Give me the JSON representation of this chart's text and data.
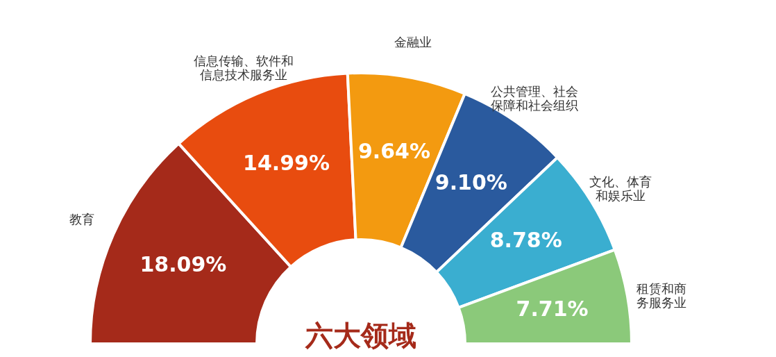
{
  "chart_data": {
    "type": "donut",
    "categories": [
      "教育",
      "信息传输、软件和信息技术服务业",
      "金融业",
      "公共管理、社会保障和社会组织",
      "文化、体育和娱乐业",
      "租赁和商务服务业"
    ],
    "values": [
      18.09,
      14.99,
      9.64,
      9.1,
      8.78,
      7.71
    ],
    "value_labels": [
      "18.09%",
      "14.99%",
      "9.64%",
      "9.10%",
      "8.78%",
      "7.71%"
    ],
    "colors": [
      "#a52a1a",
      "#e84c0f",
      "#f39a10",
      "#2a5a9e",
      "#3aaed0",
      "#8bc97a"
    ],
    "annotations": [
      "六大领域"
    ]
  }
}
